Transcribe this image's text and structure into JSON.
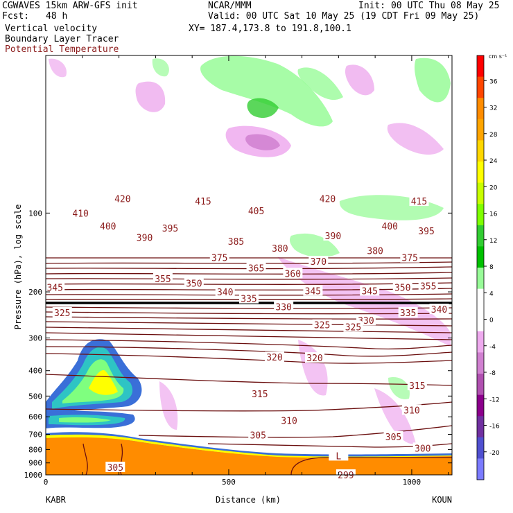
{
  "header": {
    "model": "CGWAVES 15km ARW-GFS init",
    "org": "NCAR/MMM",
    "init": "Init: 00 UTC Thu 08 May 25",
    "fcst_label": "Fcst:",
    "fcst_value": "48 h",
    "valid": "Valid: 00 UTC Sat 10 May 25 (19 CDT Fri 09 May 25)",
    "field1": "Vertical velocity",
    "xy": "XY= 187.4,173.8 to 191.8,100.1",
    "field2": "Boundary Layer Tracer",
    "field3": "Potential Temperature"
  },
  "colors": {
    "theta_line": "#6b0f0f",
    "theta_label": "#8b1a1a",
    "terrain": "#ff8c00",
    "tropopause": "#000000"
  },
  "chart_data": {
    "type": "cross-section",
    "ylabel": "Pressure (hPa), log scale",
    "xlabel": "Distance (km)",
    "x_ticks": [
      "0",
      "500",
      "1000"
    ],
    "y_ticks": [
      "100",
      "200",
      "300",
      "400",
      "500",
      "600",
      "700",
      "800",
      "900",
      "1000"
    ],
    "xlim": [
      0,
      1110
    ],
    "ylim_hpa": [
      1000,
      25
    ],
    "y_scale": "log",
    "left_endpoint": "KABR",
    "right_endpoint": "KOUN",
    "colorbar": {
      "units": "cm s⁻¹",
      "ticks": [
        "36",
        "32",
        "28",
        "24",
        "20",
        "16",
        "12",
        "8",
        "4",
        "0",
        "-4",
        "-8",
        "-12",
        "-16",
        "-20"
      ],
      "colors": [
        "#ff0000",
        "#ff4500",
        "#ff8c00",
        "#ffa500",
        "#ffd700",
        "#ffff00",
        "#c8ff00",
        "#7fff00",
        "#32cd32",
        "#00c000",
        "#98fb98",
        "#ffffff",
        "#ffffff",
        "#eeaaee",
        "#d080d0",
        "#b050b0",
        "#8b008b",
        "#7030a0",
        "#5050d0",
        "#7b7bff"
      ]
    },
    "theta_labels": [
      {
        "text": "420",
        "x": 210,
        "p": 88
      },
      {
        "text": "420",
        "x": 770,
        "p": 88
      },
      {
        "text": "415",
        "x": 430,
        "p": 90
      },
      {
        "text": "415",
        "x": 1020,
        "p": 90
      },
      {
        "text": "410",
        "x": 95,
        "p": 100
      },
      {
        "text": "405",
        "x": 575,
        "p": 98
      },
      {
        "text": "400",
        "x": 170,
        "p": 112
      },
      {
        "text": "400",
        "x": 940,
        "p": 112
      },
      {
        "text": "395",
        "x": 340,
        "p": 114
      },
      {
        "text": "395",
        "x": 1040,
        "p": 117
      },
      {
        "text": "390",
        "x": 270,
        "p": 124
      },
      {
        "text": "390",
        "x": 785,
        "p": 122
      },
      {
        "text": "385",
        "x": 520,
        "p": 128
      },
      {
        "text": "380",
        "x": 640,
        "p": 136
      },
      {
        "text": "380",
        "x": 900,
        "p": 139
      },
      {
        "text": "375",
        "x": 475,
        "p": 148
      },
      {
        "text": "375",
        "x": 995,
        "p": 148
      },
      {
        "text": "370",
        "x": 745,
        "p": 153
      },
      {
        "text": "365",
        "x": 575,
        "p": 162
      },
      {
        "text": "360",
        "x": 675,
        "p": 170
      },
      {
        "text": "355",
        "x": 320,
        "p": 178
      },
      {
        "text": "350",
        "x": 405,
        "p": 185
      },
      {
        "text": "350",
        "x": 975,
        "p": 192
      },
      {
        "text": "355",
        "x": 1045,
        "p": 190
      },
      {
        "text": "345",
        "x": 25,
        "p": 192
      },
      {
        "text": "345",
        "x": 730,
        "p": 198
      },
      {
        "text": "345",
        "x": 885,
        "p": 198
      },
      {
        "text": "340",
        "x": 490,
        "p": 200
      },
      {
        "text": "340",
        "x": 1075,
        "p": 233
      },
      {
        "text": "335",
        "x": 555,
        "p": 212
      },
      {
        "text": "335",
        "x": 990,
        "p": 240
      },
      {
        "text": "330",
        "x": 650,
        "p": 228
      },
      {
        "text": "330",
        "x": 875,
        "p": 257
      },
      {
        "text": "325",
        "x": 45,
        "p": 240
      },
      {
        "text": "325",
        "x": 755,
        "p": 267
      },
      {
        "text": "325",
        "x": 840,
        "p": 272
      },
      {
        "text": "320",
        "x": 625,
        "p": 355
      },
      {
        "text": "320",
        "x": 735,
        "p": 357
      },
      {
        "text": "315",
        "x": 585,
        "p": 490
      },
      {
        "text": "315",
        "x": 1015,
        "p": 455
      },
      {
        "text": "310",
        "x": 665,
        "p": 620
      },
      {
        "text": "310",
        "x": 1000,
        "p": 565
      },
      {
        "text": "305",
        "x": 580,
        "p": 705
      },
      {
        "text": "305",
        "x": 950,
        "p": 715
      },
      {
        "text": "305",
        "x": 190,
        "p": 935
      },
      {
        "text": "300",
        "x": 1030,
        "p": 790
      },
      {
        "text": "299",
        "x": 820,
        "p": 1000
      },
      {
        "text": "L",
        "x": 800,
        "p": 845
      }
    ]
  }
}
